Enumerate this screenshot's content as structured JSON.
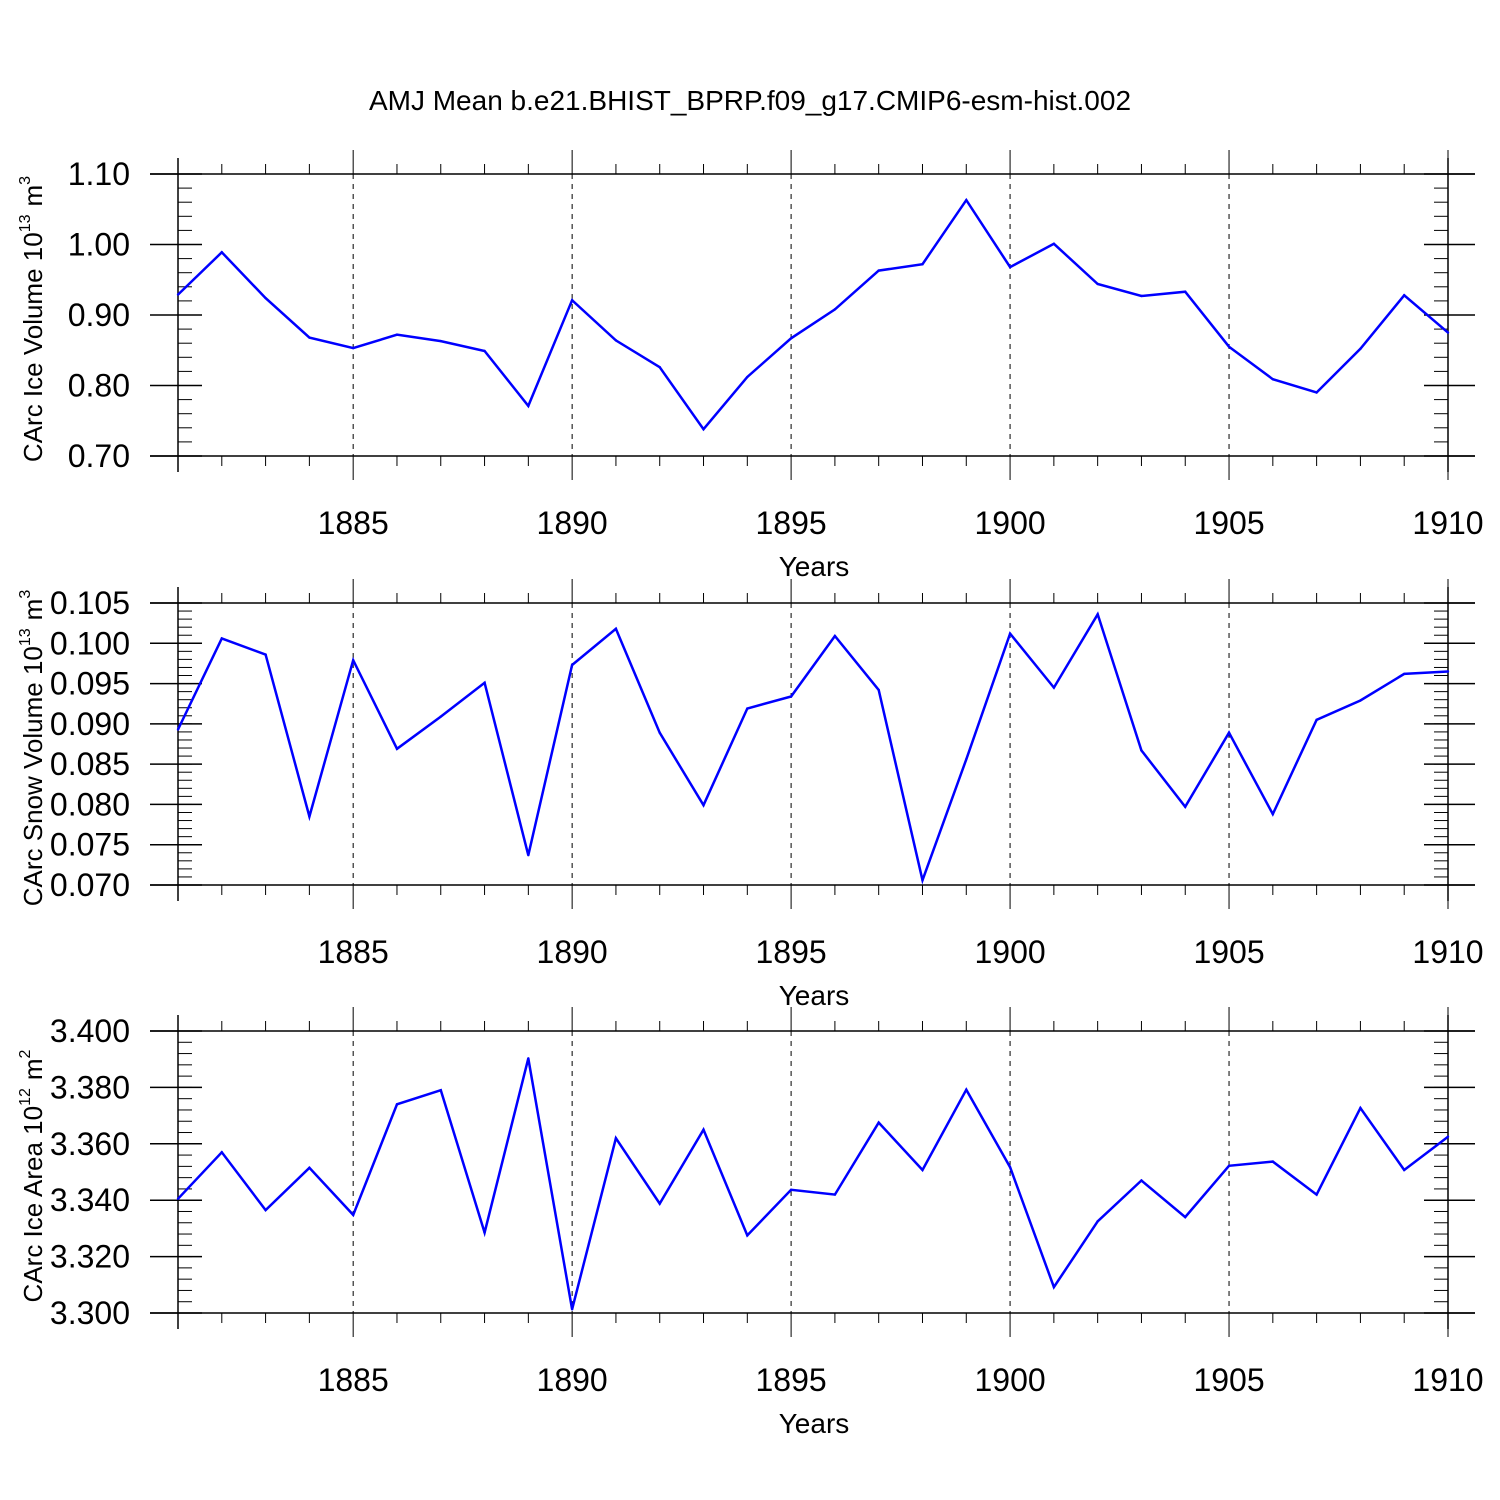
{
  "title": "AMJ Mean b.e21.BHIST_BPRP.f09_g17.CMIP6-esm-hist.002",
  "chart_data": [
    {
      "type": "line",
      "ylabel_main": "CArc Ice Volume 10",
      "ylabel_sup": "13",
      "ylabel_unit": "m",
      "ylabel_unit_sup": "3",
      "xlabel": "Years",
      "xlim": [
        1881,
        1910
      ],
      "ylim": [
        0.7,
        1.1
      ],
      "y_ticks": [
        0.7,
        0.8,
        0.9,
        1.0,
        1.1
      ],
      "y_tick_labels": [
        "0.70",
        "0.80",
        "0.90",
        "1.00",
        "1.10"
      ],
      "y_minor_step": 0.02,
      "x_ticks": [
        1885,
        1890,
        1895,
        1900,
        1905,
        1910
      ],
      "x_tick_labels": [
        "1885",
        "1890",
        "1895",
        "1900",
        "1905",
        "1910"
      ],
      "line_color": "#0000ff",
      "x": [
        1881,
        1882,
        1883,
        1884,
        1885,
        1886,
        1887,
        1888,
        1889,
        1890,
        1891,
        1892,
        1893,
        1894,
        1895,
        1896,
        1897,
        1898,
        1899,
        1900,
        1901,
        1902,
        1903,
        1904,
        1905,
        1906,
        1907,
        1908,
        1909,
        1910
      ],
      "values": [
        0.929,
        0.989,
        0.924,
        0.868,
        0.853,
        0.872,
        0.863,
        0.849,
        0.771,
        0.921,
        0.864,
        0.826,
        0.738,
        0.812,
        0.867,
        0.908,
        0.963,
        0.972,
        1.063,
        0.968,
        1.001,
        0.944,
        0.927,
        0.933,
        0.855,
        0.809,
        0.79,
        0.852,
        0.928,
        0.875
      ]
    },
    {
      "type": "line",
      "ylabel_main": "CArc Snow Volume 10",
      "ylabel_sup": "13",
      "ylabel_unit": "m",
      "ylabel_unit_sup": "3",
      "xlabel": "Years",
      "xlim": [
        1881,
        1910
      ],
      "ylim": [
        0.07,
        0.105
      ],
      "y_ticks": [
        0.07,
        0.075,
        0.08,
        0.085,
        0.09,
        0.095,
        0.1,
        0.105
      ],
      "y_tick_labels": [
        "0.070",
        "0.075",
        "0.080",
        "0.085",
        "0.090",
        "0.095",
        "0.100",
        "0.105"
      ],
      "y_minor_step": 0.001,
      "x_ticks": [
        1885,
        1890,
        1895,
        1900,
        1905,
        1910
      ],
      "x_tick_labels": [
        "1885",
        "1890",
        "1895",
        "1900",
        "1905",
        "1910"
      ],
      "line_color": "#0000ff",
      "x": [
        1881,
        1882,
        1883,
        1884,
        1885,
        1886,
        1887,
        1888,
        1889,
        1890,
        1891,
        1892,
        1893,
        1894,
        1895,
        1896,
        1897,
        1898,
        1899,
        1900,
        1901,
        1902,
        1903,
        1904,
        1905,
        1906,
        1907,
        1908,
        1909,
        1910
      ],
      "values": [
        0.0893,
        0.1006,
        0.0986,
        0.0785,
        0.0979,
        0.0869,
        0.0909,
        0.0951,
        0.0737,
        0.0973,
        0.1018,
        0.0889,
        0.0799,
        0.0919,
        0.0934,
        0.1009,
        0.0942,
        0.0706,
        0.0856,
        0.1012,
        0.0945,
        0.1036,
        0.0867,
        0.0797,
        0.0889,
        0.0788,
        0.0905,
        0.0929,
        0.0962,
        0.0965
      ]
    },
    {
      "type": "line",
      "ylabel_main": "CArc Ice Area 10",
      "ylabel_sup": "12",
      "ylabel_unit": "m",
      "ylabel_unit_sup": "2",
      "xlabel": "Years",
      "xlim": [
        1881,
        1910
      ],
      "ylim": [
        3.3,
        3.4
      ],
      "y_ticks": [
        3.3,
        3.32,
        3.34,
        3.36,
        3.38,
        3.4
      ],
      "y_tick_labels": [
        "3.300",
        "3.320",
        "3.340",
        "3.360",
        "3.380",
        "3.400"
      ],
      "y_minor_step": 0.004,
      "x_ticks": [
        1885,
        1890,
        1895,
        1900,
        1905,
        1910
      ],
      "x_tick_labels": [
        "1885",
        "1890",
        "1895",
        "1900",
        "1905",
        "1910"
      ],
      "line_color": "#0000ff",
      "x": [
        1881,
        1882,
        1883,
        1884,
        1885,
        1886,
        1887,
        1888,
        1889,
        1890,
        1891,
        1892,
        1893,
        1894,
        1895,
        1896,
        1897,
        1898,
        1899,
        1900,
        1901,
        1902,
        1903,
        1904,
        1905,
        1906,
        1907,
        1908,
        1909,
        1910
      ],
      "values": [
        3.3405,
        3.357,
        3.3365,
        3.3515,
        3.3348,
        3.374,
        3.379,
        3.3285,
        3.3903,
        3.3013,
        3.362,
        3.3388,
        3.365,
        3.3275,
        3.3437,
        3.342,
        3.3675,
        3.3507,
        3.3792,
        3.3517,
        3.3092,
        3.3325,
        3.347,
        3.334,
        3.3522,
        3.3537,
        3.342,
        3.3727,
        3.3507,
        3.3625
      ]
    }
  ]
}
